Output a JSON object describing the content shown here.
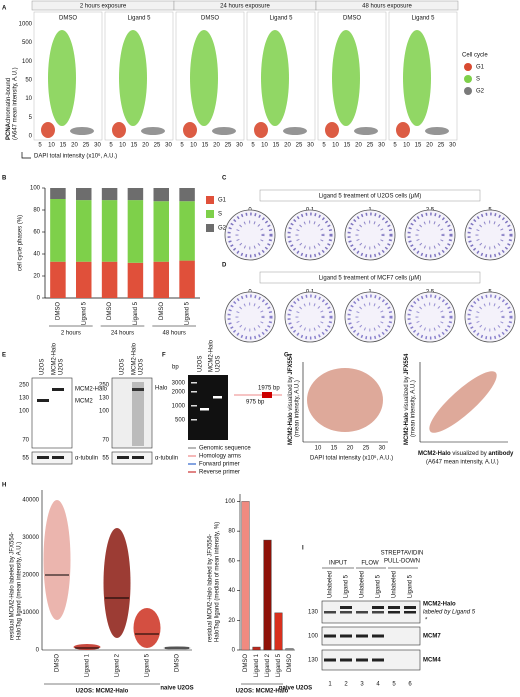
{
  "figure": {
    "A": {
      "letter": "A",
      "exposures": [
        "2 hours exposure",
        "24 hours exposure",
        "48 hours exposure"
      ],
      "conditions": [
        "DMSO",
        "Ligand 5"
      ],
      "y_label": [
        "PCNA",
        "chromatin-bound",
        "(A647 mean intensity, A.U.)"
      ],
      "y_ticks": [
        "1000",
        "500",
        "100",
        "50",
        "10",
        "5",
        "0"
      ],
      "x_ticks": [
        "5",
        "10",
        "15",
        "20",
        "25",
        "30"
      ],
      "x_label": "DAPI total intensity (x10⁶, A.U.)",
      "legend_title": "Cell cycle",
      "legend": [
        {
          "name": "G1",
          "color": "#d84a30"
        },
        {
          "name": "S",
          "color": "#7ed04a"
        },
        {
          "name": "G2",
          "color": "#7a7a7a"
        }
      ]
    },
    "B": {
      "letter": "B"
    },
    "C": {
      "letter": "C",
      "title": "Ligand 5 treatment of U2OS cells (μM)",
      "doses": [
        "0",
        "0.1",
        "1",
        "2.5",
        "5"
      ]
    },
    "D": {
      "letter": "D",
      "title": "Ligand 5 treatment of MCF7 cells (μM)",
      "doses": [
        "0",
        "0.1",
        "1",
        "2.5",
        "5"
      ]
    },
    "E": {
      "letter": "E",
      "lanes": [
        "U2OS",
        "MCM2-Halo",
        "U2OS"
      ],
      "markers": [
        "250",
        "130",
        "100",
        "70"
      ],
      "loading_marker": "55",
      "bands": [
        "MCM2-Halo",
        "MCM2"
      ],
      "halo": "Halo",
      "loading": "α-tubulin"
    },
    "F": {
      "letter": "F",
      "unit": "bp",
      "lanes": [
        "U2OS",
        "MCM2-Halo",
        "U2OS"
      ],
      "markers": [
        "3000",
        "2000",
        "1000",
        "500"
      ],
      "amplicons": [
        "1975 bp",
        "975 bp"
      ],
      "legend": [
        "Genomic sequence",
        "Homology arms",
        "Forward primer",
        "Reverse primer"
      ]
    },
    "G": {
      "letter": "G",
      "x_ticks": [
        "10",
        "15",
        "20",
        "25",
        "30"
      ],
      "x_label": "DAPI total intensity (x10⁶, A.U.)",
      "y_label": [
        "MCM2-Halo",
        " visualized by ",
        "JFX554"
      ],
      "y_label_sub": "(mean intensity, A.U.)",
      "x2_label": [
        "MCM2-Halo",
        " visualized by ",
        "antibody"
      ],
      "x2_label_sub": "(A647 mean intensity, A.U.)"
    },
    "H": {
      "letter": "H",
      "y_label": [
        "residual MCM2-Halo labeled by JFX554-",
        "HaloTag ligand (mean intensity, A.U.)"
      ],
      "y_ticks": [
        "40000",
        "30000",
        "20000",
        "10000",
        "0"
      ],
      "categories": [
        "DMSO",
        "Ligand 1",
        "Ligand 2",
        "Ligand 5",
        "DMSO"
      ],
      "groups": [
        "U2OS: MCM2-Halo",
        "naive U2OS"
      ]
    },
    "I": {
      "letter": "I",
      "sections": [
        "INPUT",
        "FLOW",
        "STREPTAVIDIN",
        "PULL-DOWN"
      ],
      "lanes": [
        "Unlabeled",
        "Ligand 5"
      ],
      "markers": [
        "130",
        "100",
        "130"
      ],
      "bands": [
        "MCM2-Halo",
        "labeled by Ligand 5",
        "*",
        "MCM7",
        "MCM4"
      ],
      "lane_numbers": [
        "1",
        "2",
        "3",
        "4",
        "5",
        "6"
      ]
    }
  },
  "chart_data": [
    {
      "type": "bar",
      "stacked": true,
      "y_label": "cell cycle phases (%)",
      "categories": [
        "DMSO",
        "Ligand 5",
        "DMSO",
        "Ligand 5",
        "DMSO",
        "Ligand 5"
      ],
      "groups": [
        "2 hours",
        "24 hours",
        "48 hours"
      ],
      "series": [
        {
          "name": "G1",
          "color": "#e0503a",
          "values": [
            33,
            33,
            33,
            32,
            33,
            34
          ]
        },
        {
          "name": "S",
          "color": "#7ed04a",
          "values": [
            57,
            56,
            56,
            57,
            55,
            54
          ]
        },
        {
          "name": "G2",
          "color": "#6d6d6d",
          "values": [
            10,
            11,
            11,
            11,
            12,
            12
          ]
        }
      ],
      "ylim": [
        0,
        100
      ],
      "yticks": [
        0,
        20,
        40,
        60,
        80,
        100
      ],
      "legend": "right"
    },
    {
      "type": "bar",
      "y_label": [
        "residual MCM2-Halo labeled by JFX554-",
        "HaloTag ligand (median of mean intensity, %)"
      ],
      "categories": [
        "DMSO",
        "Ligand 1",
        "Ligand 2",
        "Ligand 5",
        "DMSO"
      ],
      "groups": [
        "U2OS: MCM2-Halo",
        "naive U2OS"
      ],
      "colors": [
        "#f08a80",
        "#c0281c",
        "#8e1208",
        "#d8301e",
        "#999999"
      ],
      "values": [
        100,
        2,
        74,
        25,
        1
      ],
      "ylim": [
        0,
        105
      ],
      "yticks": [
        0,
        20,
        40,
        60,
        80,
        100
      ]
    }
  ]
}
